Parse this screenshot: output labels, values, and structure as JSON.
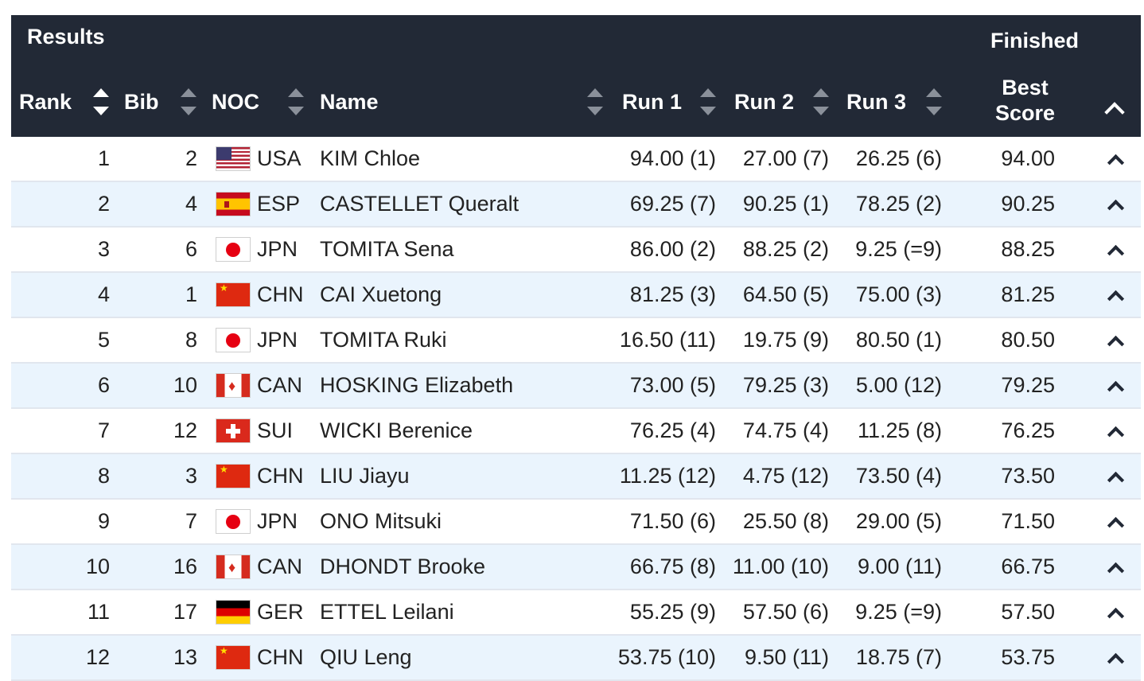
{
  "header": {
    "title": "Results",
    "status": "Finished",
    "columns": {
      "rank": "Rank",
      "bib": "Bib",
      "noc": "NOC",
      "name": "Name",
      "run1": "Run 1",
      "run2": "Run 2",
      "run3": "Run 3",
      "best_line1": "Best",
      "best_line2": "Score"
    }
  },
  "rows": [
    {
      "rank": "1",
      "bib": "2",
      "flag": "usa-flag-icon",
      "noc": "USA",
      "name": "KIM Chloe",
      "run1": "94.00 (1)",
      "run2": "27.00 (7)",
      "run3": "26.25 (6)",
      "best": "94.00"
    },
    {
      "rank": "2",
      "bib": "4",
      "flag": "esp-flag-icon",
      "noc": "ESP",
      "name": "CASTELLET Queralt",
      "run1": "69.25 (7)",
      "run2": "90.25 (1)",
      "run3": "78.25 (2)",
      "best": "90.25"
    },
    {
      "rank": "3",
      "bib": "6",
      "flag": "jpn-flag-icon",
      "noc": "JPN",
      "name": "TOMITA Sena",
      "run1": "86.00 (2)",
      "run2": "88.25 (2)",
      "run3": "9.25 (=9)",
      "best": "88.25"
    },
    {
      "rank": "4",
      "bib": "1",
      "flag": "chn-flag-icon",
      "noc": "CHN",
      "name": "CAI Xuetong",
      "run1": "81.25 (3)",
      "run2": "64.50 (5)",
      "run3": "75.00 (3)",
      "best": "81.25"
    },
    {
      "rank": "5",
      "bib": "8",
      "flag": "jpn-flag-icon",
      "noc": "JPN",
      "name": "TOMITA Ruki",
      "run1": "16.50 (11)",
      "run2": "19.75 (9)",
      "run3": "80.50 (1)",
      "best": "80.50"
    },
    {
      "rank": "6",
      "bib": "10",
      "flag": "can-flag-icon",
      "noc": "CAN",
      "name": "HOSKING Elizabeth",
      "run1": "73.00 (5)",
      "run2": "79.25 (3)",
      "run3": "5.00 (12)",
      "best": "79.25"
    },
    {
      "rank": "7",
      "bib": "12",
      "flag": "sui-flag-icon",
      "noc": "SUI",
      "name": "WICKI Berenice",
      "run1": "76.25 (4)",
      "run2": "74.75 (4)",
      "run3": "11.25 (8)",
      "best": "76.25"
    },
    {
      "rank": "8",
      "bib": "3",
      "flag": "chn-flag-icon",
      "noc": "CHN",
      "name": "LIU Jiayu",
      "run1": "11.25 (12)",
      "run2": "4.75 (12)",
      "run3": "73.50 (4)",
      "best": "73.50"
    },
    {
      "rank": "9",
      "bib": "7",
      "flag": "jpn-flag-icon",
      "noc": "JPN",
      "name": "ONO Mitsuki",
      "run1": "71.50 (6)",
      "run2": "25.50 (8)",
      "run3": "29.00 (5)",
      "best": "71.50"
    },
    {
      "rank": "10",
      "bib": "16",
      "flag": "can-flag-icon",
      "noc": "CAN",
      "name": "DHONDT Brooke",
      "run1": "66.75 (8)",
      "run2": "11.00 (10)",
      "run3": "9.00 (11)",
      "best": "66.75"
    },
    {
      "rank": "11",
      "bib": "17",
      "flag": "ger-flag-icon",
      "noc": "GER",
      "name": "ETTEL Leilani",
      "run1": "55.25 (9)",
      "run2": "57.50 (6)",
      "run3": "9.25 (=9)",
      "best": "57.50"
    },
    {
      "rank": "12",
      "bib": "13",
      "flag": "chn-flag-icon",
      "noc": "CHN",
      "name": "QIU Leng",
      "run1": "53.75 (10)",
      "run2": "9.50 (11)",
      "run3": "18.75 (7)",
      "best": "53.75"
    }
  ]
}
